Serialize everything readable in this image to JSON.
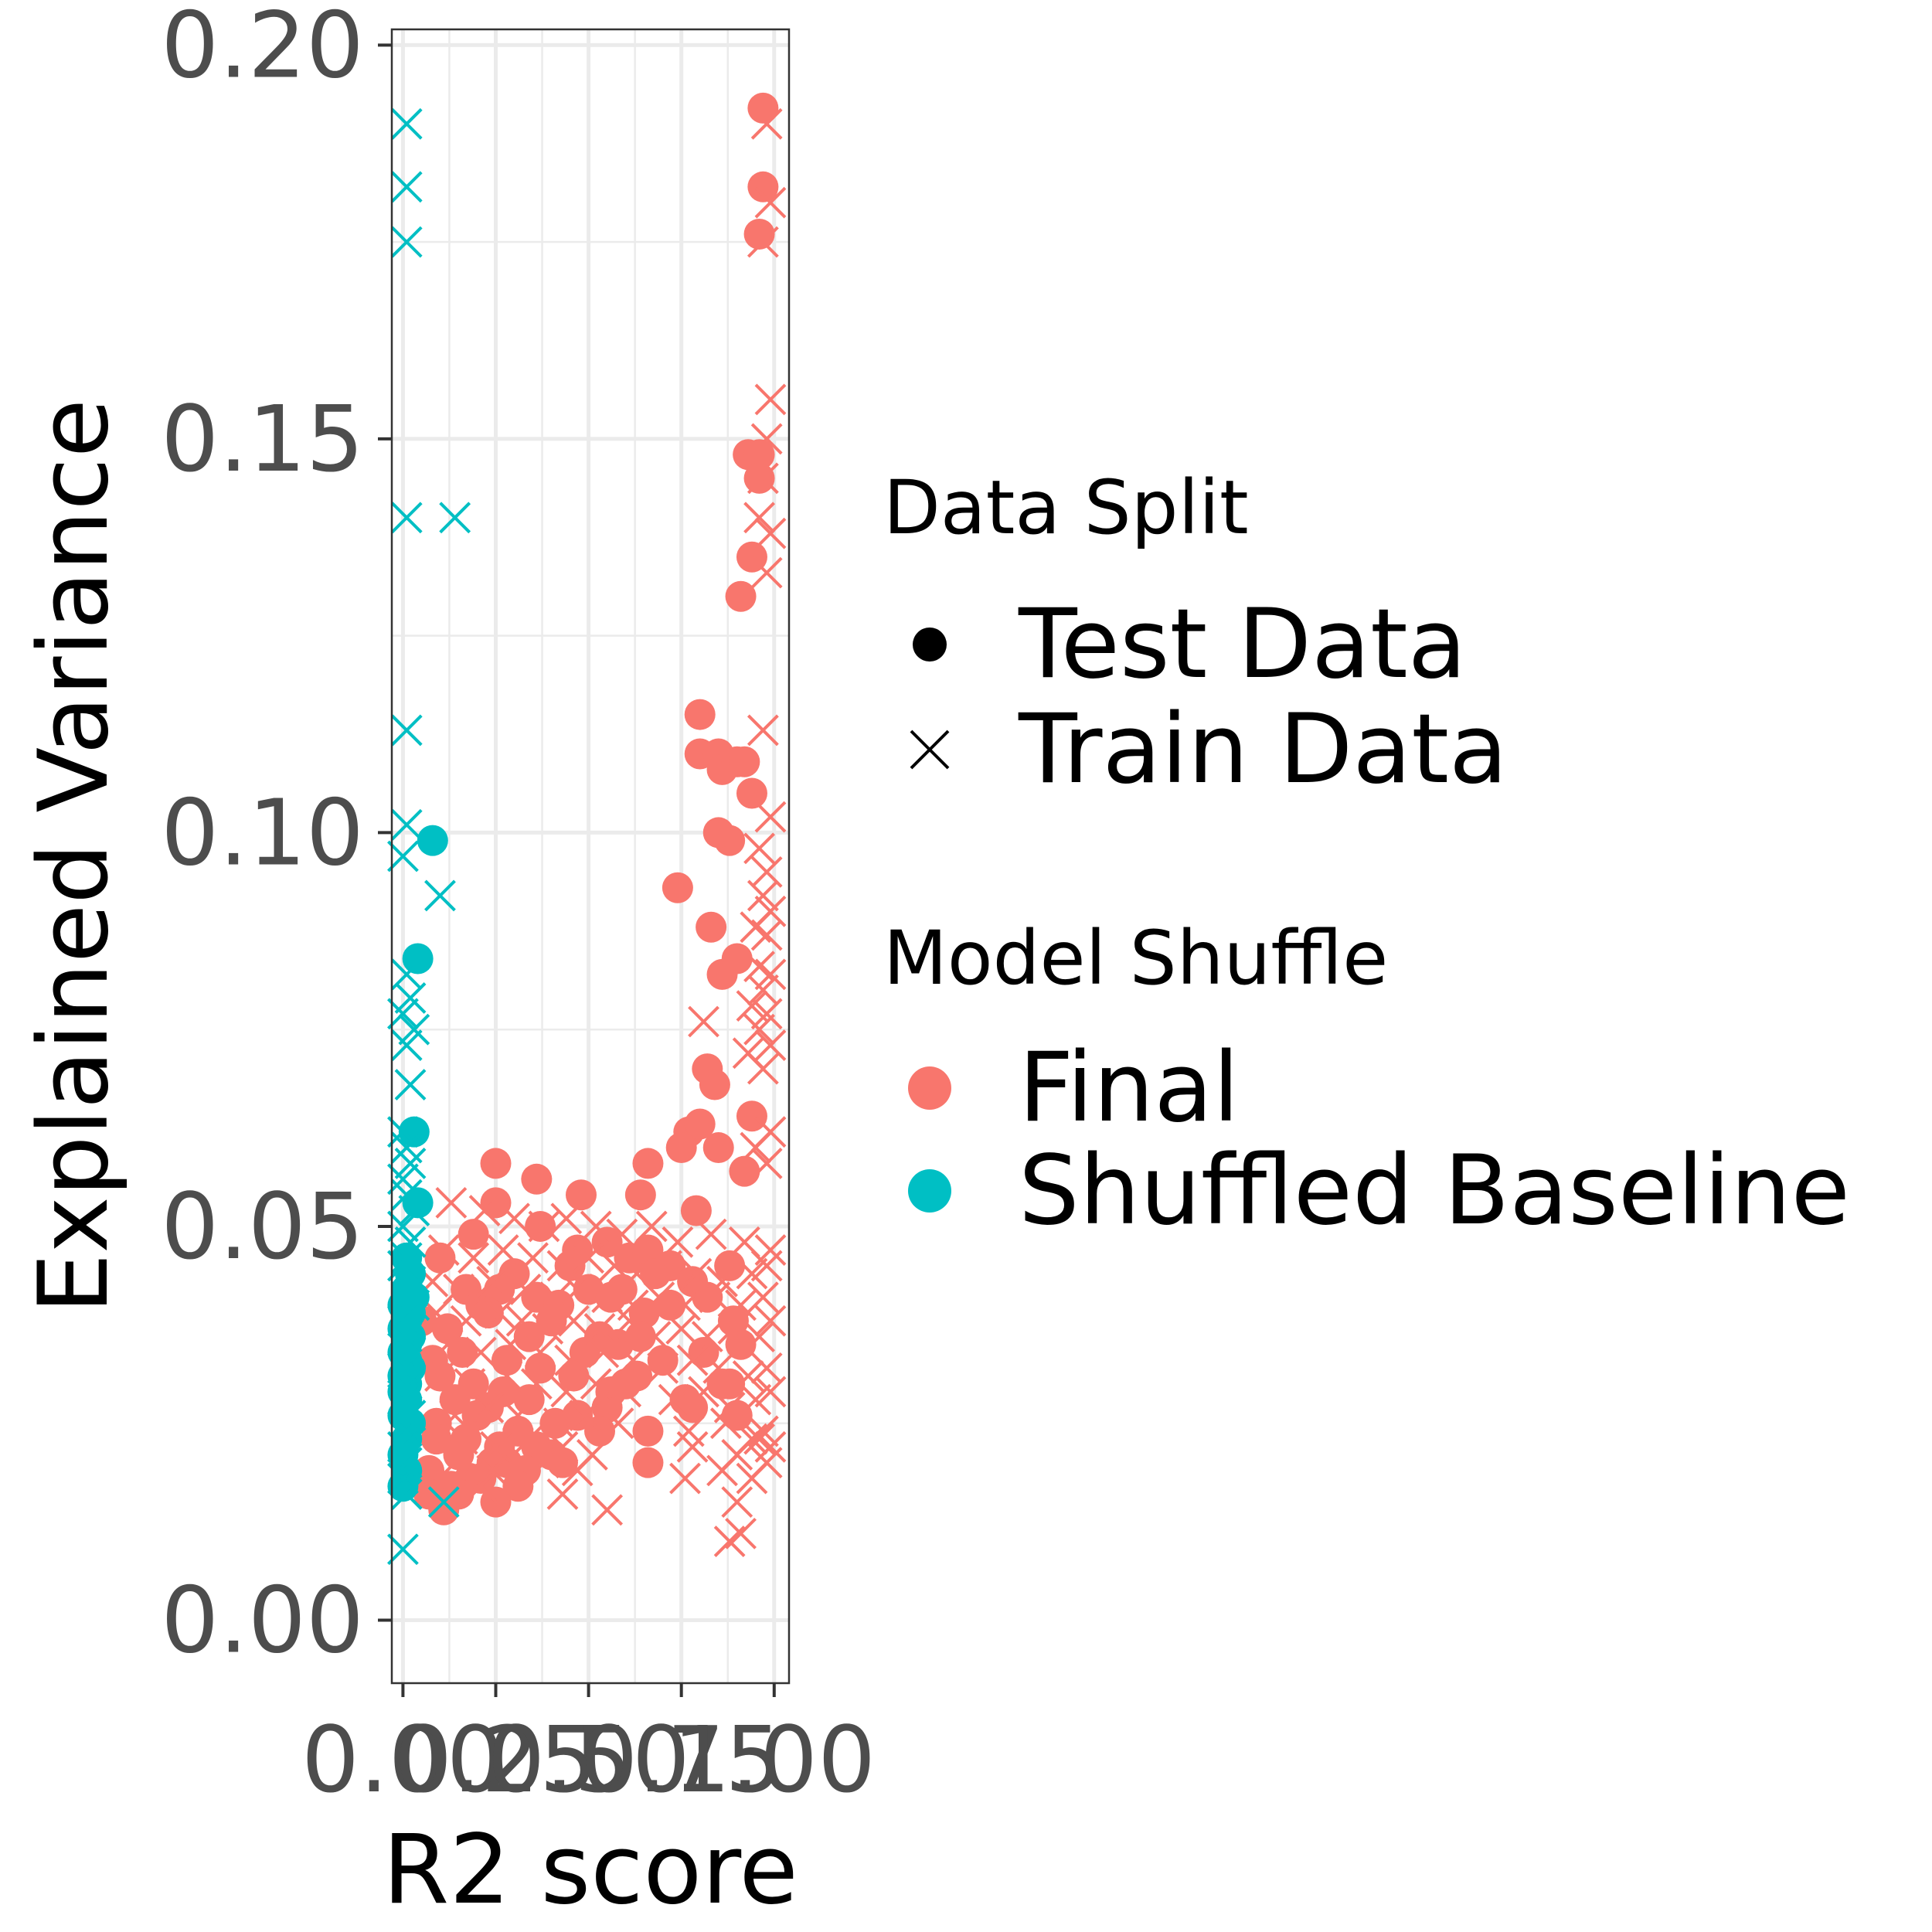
{
  "chart_data": {
    "type": "scatter",
    "xlabel": "R2 score",
    "ylabel": "Explained Variance",
    "xlim": [
      -0.03,
      1.04
    ],
    "ylim": [
      -0.008,
      0.202
    ],
    "x_ticks": [
      0.0,
      0.25,
      0.5,
      0.75,
      1.0
    ],
    "x_tick_labels": [
      "0.00",
      "0.25",
      "0.50",
      "0.75",
      "1.00"
    ],
    "y_ticks": [
      0.0,
      0.05,
      0.1,
      0.15,
      0.2
    ],
    "y_tick_labels": [
      "0.00",
      "0.05",
      "0.10",
      "0.15",
      "0.20"
    ],
    "grid": true,
    "legend_position": "right",
    "colors": {
      "Final": "#F8766D",
      "Shuffled Baseline": "#00BFC4"
    },
    "legends": [
      {
        "title": "Data Split",
        "entries": [
          {
            "label": "Test Data",
            "shape": "circle"
          },
          {
            "label": "Train Data",
            "shape": "cross"
          }
        ]
      },
      {
        "title": "Model Shuffle",
        "entries": [
          {
            "label": "Final",
            "color": "#F8766D"
          },
          {
            "label": "Shuffled Baseline",
            "color": "#00BFC4"
          }
        ]
      }
    ],
    "series": [
      {
        "name": "Final / Test Data",
        "model": "Final",
        "split": "Test Data",
        "x": [
          0.97,
          0.97,
          0.96,
          0.93,
          0.96,
          0.96,
          0.94,
          0.91,
          0.8,
          0.8,
          0.85,
          0.86,
          0.9,
          0.92,
          0.94,
          0.74,
          0.83,
          0.86,
          0.9,
          0.88,
          0.85,
          0.82,
          0.84,
          0.77,
          0.8,
          0.94,
          0.75,
          0.25,
          0.36,
          0.48,
          0.66,
          0.64,
          0.85,
          0.92,
          0.25,
          0.37,
          0.19,
          0.47,
          0.55,
          0.61,
          0.66,
          0.72,
          0.79,
          0.88,
          0.1,
          0.3,
          0.45,
          0.59,
          0.68,
          0.78,
          0.82,
          0.17,
          0.21,
          0.26,
          0.36,
          0.42,
          0.5,
          0.56,
          0.65,
          0.72,
          0.89,
          0.05,
          0.12,
          0.23,
          0.34,
          0.4,
          0.53,
          0.58,
          0.64,
          0.81,
          0.91,
          0.08,
          0.16,
          0.28,
          0.37,
          0.49,
          0.63,
          0.7,
          0.86,
          0.1,
          0.19,
          0.27,
          0.46,
          0.6,
          0.76,
          0.88,
          0.14,
          0.23,
          0.34,
          0.47,
          0.56,
          0.78,
          0.9,
          0.09,
          0.2,
          0.31,
          0.41,
          0.55,
          0.66,
          0.09,
          0.17,
          0.26,
          0.4,
          0.53,
          0.15,
          0.24,
          0.36,
          0.43,
          0.07,
          0.18,
          0.28,
          0.33,
          0.66,
          0.13,
          0.21,
          0.31,
          0.07,
          0.15,
          0.25,
          0.11
        ],
        "y": [
          0.192,
          0.182,
          0.176,
          0.148,
          0.148,
          0.145,
          0.135,
          0.13,
          0.115,
          0.11,
          0.11,
          0.108,
          0.109,
          0.109,
          0.105,
          0.093,
          0.088,
          0.082,
          0.084,
          0.099,
          0.1,
          0.07,
          0.068,
          0.062,
          0.063,
          0.064,
          0.06,
          0.058,
          0.056,
          0.054,
          0.058,
          0.054,
          0.06,
          0.057,
          0.053,
          0.05,
          0.049,
          0.047,
          0.048,
          0.046,
          0.047,
          0.045,
          0.052,
          0.045,
          0.046,
          0.044,
          0.045,
          0.042,
          0.044,
          0.043,
          0.041,
          0.042,
          0.04,
          0.042,
          0.041,
          0.04,
          0.042,
          0.041,
          0.039,
          0.04,
          0.038,
          0.038,
          0.037,
          0.039,
          0.036,
          0.038,
          0.036,
          0.035,
          0.036,
          0.034,
          0.035,
          0.033,
          0.034,
          0.033,
          0.032,
          0.034,
          0.031,
          0.033,
          0.03,
          0.031,
          0.03,
          0.029,
          0.031,
          0.03,
          0.028,
          0.03,
          0.028,
          0.027,
          0.028,
          0.026,
          0.029,
          0.027,
          0.026,
          0.025,
          0.026,
          0.024,
          0.025,
          0.027,
          0.024,
          0.023,
          0.023,
          0.022,
          0.021,
          0.024,
          0.021,
          0.02,
          0.022,
          0.02,
          0.019,
          0.018,
          0.02,
          0.019,
          0.02,
          0.017,
          0.018,
          0.017,
          0.016,
          0.016,
          0.015,
          0.014
        ],
        "marker": "circle"
      },
      {
        "name": "Final / Train Data",
        "model": "Final",
        "split": "Train Data",
        "x": [
          0.98,
          0.99,
          0.97,
          0.99,
          0.98,
          0.97,
          0.96,
          0.99,
          0.98,
          0.97,
          0.99,
          0.96,
          0.98,
          0.97,
          0.99,
          0.95,
          0.98,
          0.96,
          0.99,
          0.97,
          0.94,
          0.98,
          0.96,
          0.99,
          0.81,
          0.93,
          0.97,
          0.99,
          0.95,
          0.98,
          0.13,
          0.22,
          0.3,
          0.38,
          0.44,
          0.52,
          0.59,
          0.67,
          0.74,
          0.83,
          0.92,
          0.99,
          0.11,
          0.19,
          0.27,
          0.35,
          0.43,
          0.5,
          0.57,
          0.63,
          0.71,
          0.79,
          0.86,
          0.94,
          0.98,
          0.08,
          0.15,
          0.24,
          0.33,
          0.41,
          0.47,
          0.55,
          0.62,
          0.69,
          0.76,
          0.84,
          0.91,
          0.97,
          0.09,
          0.17,
          0.26,
          0.32,
          0.39,
          0.46,
          0.53,
          0.61,
          0.68,
          0.75,
          0.82,
          0.89,
          0.96,
          0.99,
          0.12,
          0.21,
          0.29,
          0.37,
          0.45,
          0.54,
          0.62,
          0.7,
          0.78,
          0.85,
          0.93,
          0.98,
          0.1,
          0.18,
          0.28,
          0.36,
          0.44,
          0.52,
          0.6,
          0.73,
          0.81,
          0.88,
          0.95,
          0.99,
          0.14,
          0.23,
          0.31,
          0.42,
          0.49,
          0.58,
          0.77,
          0.87,
          0.94,
          0.97,
          0.16,
          0.25,
          0.34,
          0.43,
          0.51,
          0.78,
          0.9,
          0.96,
          0.99,
          0.14,
          0.24,
          0.38,
          0.47,
          0.76,
          0.86,
          0.94,
          0.98,
          0.21,
          0.43,
          0.9,
          0.55,
          0.91,
          0.88
        ],
        "y": [
          0.19,
          0.18,
          0.175,
          0.155,
          0.15,
          0.145,
          0.14,
          0.138,
          0.133,
          0.113,
          0.102,
          0.098,
          0.095,
          0.092,
          0.09,
          0.088,
          0.087,
          0.083,
          0.082,
          0.08,
          0.078,
          0.077,
          0.075,
          0.073,
          0.076,
          0.072,
          0.07,
          0.062,
          0.06,
          0.058,
          0.053,
          0.052,
          0.051,
          0.05,
          0.051,
          0.05,
          0.049,
          0.05,
          0.048,
          0.049,
          0.048,
          0.047,
          0.047,
          0.046,
          0.047,
          0.046,
          0.045,
          0.046,
          0.045,
          0.044,
          0.045,
          0.044,
          0.043,
          0.044,
          0.045,
          0.043,
          0.042,
          0.043,
          0.042,
          0.041,
          0.042,
          0.041,
          0.04,
          0.041,
          0.04,
          0.041,
          0.04,
          0.041,
          0.039,
          0.038,
          0.039,
          0.038,
          0.037,
          0.038,
          0.037,
          0.038,
          0.036,
          0.037,
          0.036,
          0.037,
          0.036,
          0.038,
          0.035,
          0.034,
          0.035,
          0.034,
          0.033,
          0.034,
          0.033,
          0.032,
          0.033,
          0.032,
          0.031,
          0.032,
          0.031,
          0.03,
          0.031,
          0.03,
          0.029,
          0.03,
          0.029,
          0.028,
          0.029,
          0.027,
          0.028,
          0.029,
          0.026,
          0.027,
          0.026,
          0.025,
          0.026,
          0.025,
          0.024,
          0.025,
          0.023,
          0.024,
          0.023,
          0.022,
          0.023,
          0.022,
          0.021,
          0.022,
          0.021,
          0.023,
          0.022,
          0.02,
          0.019,
          0.02,
          0.019,
          0.018,
          0.019,
          0.018,
          0.02,
          0.017,
          0.016,
          0.015,
          0.014,
          0.011,
          0.01
        ],
        "marker": "cross"
      },
      {
        "name": "Shuffled Baseline / Test Data",
        "model": "Shuffled Baseline",
        "split": "Test Data",
        "x": [
          0.08,
          0.04,
          0.03,
          0.04,
          0.01,
          0.02,
          0.01,
          0.03,
          0.0,
          0.02,
          0.01,
          0.0,
          0.02,
          0.01,
          0.0,
          0.01,
          0.02,
          0.0,
          0.01,
          0.0,
          0.01,
          0.0,
          0.02,
          0.01,
          0.0,
          0.01,
          0.0
        ],
        "y": [
          0.099,
          0.084,
          0.062,
          0.053,
          0.046,
          0.044,
          0.042,
          0.041,
          0.04,
          0.039,
          0.038,
          0.037,
          0.036,
          0.035,
          0.034,
          0.033,
          0.032,
          0.031,
          0.03,
          0.029,
          0.028,
          0.026,
          0.025,
          0.023,
          0.021,
          0.019,
          0.017
        ],
        "marker": "circle"
      },
      {
        "name": "Shuffled Baseline / Train Data",
        "model": "Shuffled Baseline",
        "split": "Train Data",
        "x": [
          0.01,
          0.01,
          0.01,
          0.01,
          0.14,
          0.01,
          0.01,
          0.0,
          0.1,
          0.01,
          0.02,
          0.0,
          0.03,
          0.01,
          0.02,
          0.0,
          0.01,
          0.02,
          0.0,
          0.01,
          0.03,
          0.0,
          0.02,
          0.01,
          0.0,
          0.02,
          0.01,
          0.03,
          0.0,
          0.01,
          0.02,
          0.0,
          0.01,
          0.0,
          0.02,
          0.01,
          0.0,
          0.01,
          0.0,
          0.01,
          0.0,
          0.11
        ],
        "y": [
          0.19,
          0.182,
          0.175,
          0.14,
          0.14,
          0.113,
          0.101,
          0.097,
          0.092,
          0.082,
          0.079,
          0.077,
          0.075,
          0.073,
          0.068,
          0.062,
          0.06,
          0.058,
          0.056,
          0.054,
          0.052,
          0.05,
          0.048,
          0.046,
          0.045,
          0.043,
          0.041,
          0.04,
          0.038,
          0.036,
          0.034,
          0.032,
          0.03,
          0.028,
          0.026,
          0.024,
          0.022,
          0.02,
          0.018,
          0.016,
          0.009,
          0.015
        ],
        "marker": "cross"
      }
    ]
  }
}
